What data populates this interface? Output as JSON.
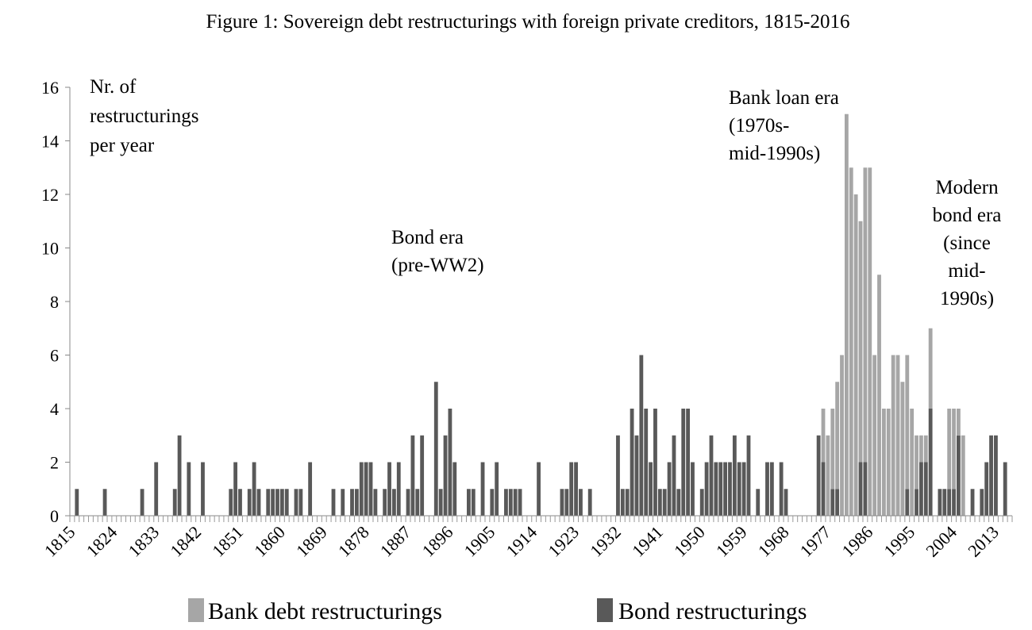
{
  "chart_data": {
    "type": "bar",
    "stacked": true,
    "title": "Figure 1: Sovereign debt restructurings with foreign private creditors, 1815-2016",
    "ylabel": "Nr. of restructurings per year",
    "ylabel_lines": [
      "Nr. of",
      "restructurings",
      "per year"
    ],
    "xlabel": "",
    "x_start": 1815,
    "x_end": 2016,
    "xtick_labels": [
      "1815",
      "1824",
      "1833",
      "1842",
      "1851",
      "1860",
      "1869",
      "1878",
      "1887",
      "1896",
      "1905",
      "1914",
      "1923",
      "1932",
      "1941",
      "1950",
      "1959",
      "1968",
      "1977",
      "1986",
      "1995",
      "2004",
      "2013"
    ],
    "ylim": [
      0,
      16
    ],
    "yticks": [
      0,
      2,
      4,
      6,
      8,
      10,
      12,
      14,
      16
    ],
    "grid": false,
    "legend_position": "bottom",
    "series": [
      {
        "name": "Bank debt restructurings",
        "color": "#a6a6a6",
        "values": {
          "1976": 2,
          "1977": 3,
          "1978": 3,
          "1979": 4,
          "1980": 6,
          "1981": 15,
          "1982": 13,
          "1983": 12,
          "1984": 9,
          "1985": 11,
          "1986": 13,
          "1987": 6,
          "1988": 9,
          "1989": 4,
          "1990": 4,
          "1991": 6,
          "1992": 6,
          "1993": 5,
          "1994": 5,
          "1995": 4,
          "1996": 2,
          "1997": 1,
          "1998": 1,
          "1999": 3,
          "2000": 0,
          "2001": 0,
          "2002": 0,
          "2003": 3,
          "2004": 3,
          "2005": 1,
          "2006": 3
        }
      },
      {
        "name": "Bond restructurings",
        "color": "#595959",
        "values": {
          "1816": 1,
          "1822": 1,
          "1830": 1,
          "1833": 2,
          "1837": 1,
          "1838": 3,
          "1840": 2,
          "1843": 2,
          "1849": 1,
          "1850": 2,
          "1851": 1,
          "1853": 1,
          "1854": 2,
          "1855": 1,
          "1857": 1,
          "1858": 1,
          "1859": 1,
          "1860": 1,
          "1861": 1,
          "1863": 1,
          "1864": 1,
          "1866": 2,
          "1871": 1,
          "1873": 1,
          "1875": 1,
          "1876": 1,
          "1877": 2,
          "1878": 2,
          "1879": 2,
          "1880": 1,
          "1882": 1,
          "1883": 2,
          "1884": 1,
          "1885": 2,
          "1887": 1,
          "1888": 3,
          "1889": 1,
          "1890": 3,
          "1893": 5,
          "1894": 1,
          "1895": 3,
          "1896": 4,
          "1897": 2,
          "1900": 1,
          "1901": 1,
          "1903": 2,
          "1905": 1,
          "1906": 2,
          "1908": 1,
          "1909": 1,
          "1910": 1,
          "1911": 1,
          "1915": 2,
          "1920": 1,
          "1921": 1,
          "1922": 2,
          "1923": 2,
          "1924": 1,
          "1926": 1,
          "1932": 3,
          "1933": 1,
          "1934": 1,
          "1935": 4,
          "1936": 3,
          "1937": 6,
          "1938": 4,
          "1939": 2,
          "1940": 4,
          "1941": 1,
          "1942": 1,
          "1943": 2,
          "1944": 3,
          "1945": 1,
          "1946": 4,
          "1947": 4,
          "1948": 2,
          "1950": 1,
          "1951": 2,
          "1952": 3,
          "1953": 2,
          "1954": 2,
          "1955": 2,
          "1956": 2,
          "1957": 3,
          "1958": 2,
          "1959": 2,
          "1960": 3,
          "1962": 1,
          "1964": 2,
          "1965": 2,
          "1967": 2,
          "1968": 1,
          "1975": 3,
          "1976": 2,
          "1978": 1,
          "1979": 1,
          "1984": 2,
          "1985": 2,
          "1994": 1,
          "1996": 1,
          "1997": 2,
          "1998": 2,
          "1999": 4,
          "2001": 1,
          "2002": 1,
          "2003": 1,
          "2004": 1,
          "2005": 3,
          "2008": 1,
          "2010": 1,
          "2011": 2,
          "2012": 3,
          "2013": 3,
          "2015": 2
        }
      }
    ],
    "annotations": [
      {
        "id": "bond-era",
        "lines": [
          "Bond era",
          "(pre-WW2)"
        ]
      },
      {
        "id": "bank-loan-era",
        "lines": [
          "Bank loan era",
          "(1970s-",
          "mid-1990s)"
        ]
      },
      {
        "id": "modern-bond-era",
        "lines": [
          "Modern",
          "bond era",
          "(since",
          "mid-",
          "1990s)"
        ]
      }
    ]
  }
}
